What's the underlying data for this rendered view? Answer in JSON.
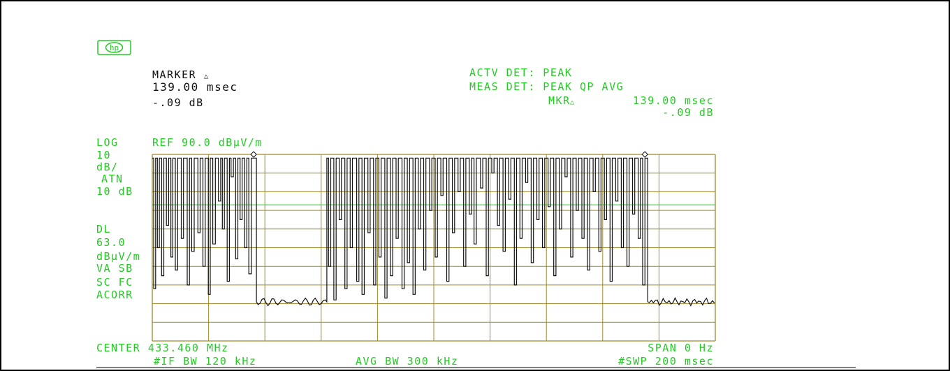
{
  "logo_text": "hp",
  "marker": {
    "title": "MARKER",
    "symbol": "△",
    "time": "139.00 msec",
    "level": "-.09 dB"
  },
  "detector": {
    "actv": "ACTV DET: PEAK",
    "meas": "MEAS DET: PEAK QP AVG",
    "mkr_label": "MKR",
    "mkr_symbol": "△",
    "mkr_time": "139.00 msec",
    "mkr_level": "-.09 dB"
  },
  "left_panel": {
    "log": "LOG",
    "ref": "REF 90.0 dBµV/m",
    "scale_value": "10",
    "scale_unit": "dB/",
    "atn_label": "ATN",
    "atn_value": "10 dB",
    "dl_label": "DL",
    "dl_value": "63.0",
    "dl_unit": "dBµV/m",
    "va_sb": "VA SB",
    "sc_fc": "SC FC",
    "acorr": "ACORR"
  },
  "footer": {
    "center": "CENTER 433.460 MHz",
    "span": "SPAN 0 Hz",
    "if_bw": "#IF BW 120 kHz",
    "avg_bw": "AVG BW 300 kHz",
    "swp": "#SWP 200 msec"
  },
  "chart_data": {
    "type": "line",
    "x_unit": "msec",
    "y_unit": "dBµV/m",
    "xlim": [
      0,
      200
    ],
    "ylim": [
      -10,
      90
    ],
    "grid": true,
    "display_line": 63.0,
    "marker_points": [
      [
        36,
        90
      ],
      [
        175,
        90
      ]
    ],
    "trace_high": 88,
    "trace_low": 10,
    "trace_floor": 11,
    "trace_gap_start": 37,
    "trace_gap_end": 62,
    "trace_end_start": 176,
    "pulse_segments": [
      [
        [
          0.5,
          1.2,
          18
        ],
        [
          1.8,
          2.5,
          40
        ],
        [
          3.3,
          4.1,
          25
        ],
        [
          5,
          5.8,
          52
        ],
        [
          6.6,
          7.3,
          35
        ],
        [
          8.2,
          9,
          28
        ],
        [
          10.3,
          11.1,
          45
        ],
        [
          12.4,
          13.2,
          20
        ],
        [
          14,
          14.9,
          38
        ],
        [
          16.2,
          17,
          48
        ],
        [
          18,
          18.8,
          30
        ],
        [
          19.9,
          20.6,
          15
        ],
        [
          21.5,
          22.4,
          42
        ],
        [
          23.5,
          24.3,
          65
        ],
        [
          24.9,
          25.6,
          50
        ],
        [
          26.6,
          27.4,
          22
        ],
        [
          28,
          28.8,
          78
        ],
        [
          29.6,
          30.4,
          34
        ],
        [
          31.2,
          31.9,
          55
        ],
        [
          32.8,
          33.6,
          40
        ],
        [
          34.3,
          35.2,
          26
        ]
      ],
      [
        [
          62.6,
          63.4,
          30
        ],
        [
          64.5,
          65.3,
          12
        ],
        [
          66.4,
          67.2,
          55
        ],
        [
          68.4,
          69.2,
          18
        ],
        [
          70.3,
          71.1,
          40
        ],
        [
          72.6,
          73.4,
          22
        ],
        [
          74.5,
          75.3,
          15
        ],
        [
          76.6,
          77.4,
          48
        ],
        [
          78.6,
          79.4,
          20
        ],
        [
          80.5,
          81.3,
          35
        ],
        [
          82.6,
          83.4,
          13
        ],
        [
          84.6,
          85.4,
          25
        ],
        [
          86.6,
          87.4,
          45
        ],
        [
          88.7,
          89.5,
          18
        ],
        [
          90.6,
          91.4,
          32
        ],
        [
          92.6,
          93.4,
          15
        ],
        [
          94.5,
          95.3,
          50
        ],
        [
          96.4,
          97.2,
          28
        ]
      ],
      [
        [
          98.5,
          99.3,
          60
        ],
        [
          100.5,
          101.3,
          35
        ],
        [
          102.5,
          103.3,
          68
        ],
        [
          104.6,
          105.4,
          22
        ],
        [
          106.6,
          107.4,
          48
        ],
        [
          108.6,
          109.4,
          70
        ],
        [
          110.6,
          111.4,
          30
        ],
        [
          112.6,
          113.4,
          58
        ],
        [
          114.3,
          115.1,
          42
        ],
        [
          116.6,
          117.4,
          72
        ],
        [
          118.6,
          119.4,
          25
        ],
        [
          120.6,
          121.4,
          80
        ],
        [
          122.6,
          123.4,
          52
        ],
        [
          124.6,
          125.4,
          38
        ],
        [
          126.6,
          127.4,
          66
        ],
        [
          128.6,
          129.4,
          20
        ],
        [
          130.6,
          131.4,
          45
        ],
        [
          132.6,
          133.4,
          75
        ],
        [
          134.6,
          135.4,
          32
        ],
        [
          136.6,
          137.4,
          55
        ],
        [
          138.6,
          139.4,
          40
        ],
        [
          140.6,
          141.4,
          62
        ],
        [
          142.6,
          143.4,
          25
        ],
        [
          144.6,
          145.4,
          50
        ],
        [
          146.6,
          147.4,
          78
        ],
        [
          148.6,
          149.4,
          35
        ],
        [
          150.6,
          151.4,
          60
        ],
        [
          152.6,
          153.4,
          45
        ],
        [
          154.6,
          155.4,
          28
        ],
        [
          156.6,
          157.4,
          70
        ],
        [
          158.6,
          159.4,
          38
        ],
        [
          160.6,
          161.4,
          55
        ],
        [
          162.6,
          163.4,
          22
        ],
        [
          164.6,
          165.4,
          65
        ],
        [
          166.6,
          167.4,
          40
        ],
        [
          168.6,
          169.4,
          30
        ],
        [
          170.6,
          171.4,
          58
        ],
        [
          172.6,
          173.4,
          45
        ],
        [
          174.2,
          175,
          20
        ]
      ]
    ]
  }
}
